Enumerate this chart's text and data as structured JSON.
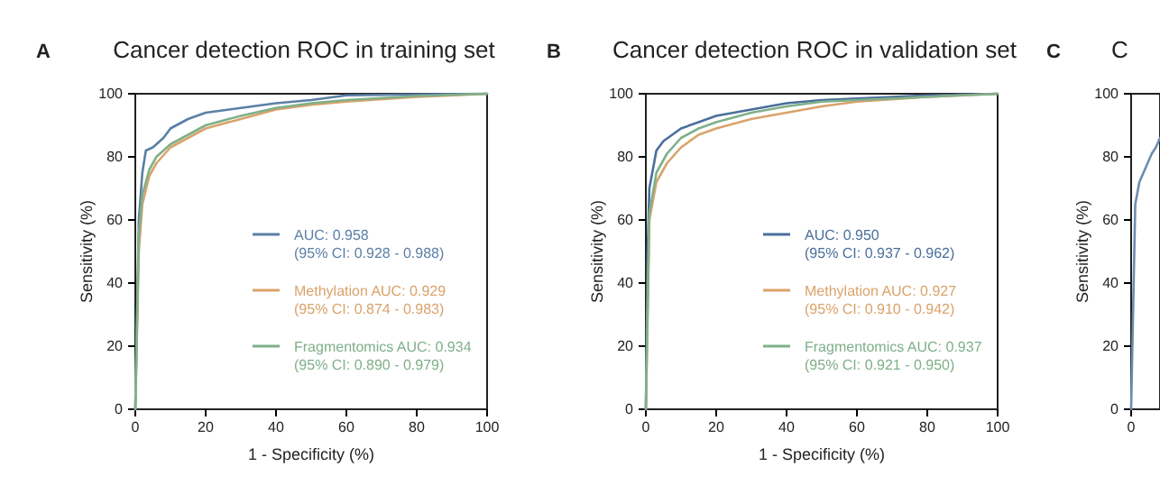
{
  "chart_data": [
    {
      "type": "line",
      "title": "Cancer detection ROC in training set",
      "xlabel": "1 - Specificity (%)",
      "ylabel": "Sensitivity (%)",
      "annotations": [
        "A"
      ],
      "xlim": [
        0,
        100
      ],
      "ylim": [
        0,
        100
      ],
      "xticks": [
        0,
        20,
        40,
        60,
        80,
        100
      ],
      "yticks": [
        0,
        20,
        40,
        60,
        80,
        100
      ],
      "legend": "right",
      "grid": false,
      "marker": "none",
      "series": [
        {
          "name": "AUC: 0.958\n(95% CI: 0.928 - 0.988)",
          "color": "#5b7fa6",
          "x": [
            0,
            0.5,
            1,
            2,
            3,
            5,
            8,
            10,
            15,
            20,
            30,
            40,
            50,
            60,
            80,
            100
          ],
          "values": [
            0,
            30,
            60,
            75,
            82,
            83,
            86,
            89,
            92,
            94,
            95.5,
            97,
            98,
            99.5,
            99.8,
            100
          ]
        },
        {
          "name": "Methylation AUC: 0.929\n(95% CI: 0.874 - 0.983)",
          "color": "#d9a36b",
          "x": [
            0,
            1,
            2,
            4,
            6,
            10,
            15,
            20,
            30,
            40,
            50,
            60,
            80,
            100
          ],
          "values": [
            0,
            50,
            65,
            74,
            78,
            83,
            86,
            89,
            92,
            95,
            96.5,
            97.5,
            99,
            100
          ]
        },
        {
          "name": "Fragmentomics AUC: 0.934\n(95% CI: 0.890 - 0.979)",
          "color": "#7fb08a",
          "x": [
            0,
            1,
            2,
            4,
            6,
            10,
            15,
            20,
            30,
            40,
            50,
            60,
            80,
            100
          ],
          "values": [
            0,
            55,
            68,
            76,
            80,
            84,
            87,
            90,
            93,
            95.5,
            97,
            98,
            99.3,
            100
          ]
        }
      ]
    },
    {
      "type": "line",
      "title": "Cancer detection ROC in validation set",
      "xlabel": "1 - Specificity (%)",
      "ylabel": "Sensitivity (%)",
      "annotations": [
        "B"
      ],
      "xlim": [
        0,
        100
      ],
      "ylim": [
        0,
        100
      ],
      "xticks": [
        0,
        20,
        40,
        60,
        80,
        100
      ],
      "yticks": [
        0,
        20,
        40,
        60,
        80,
        100
      ],
      "legend": "right",
      "grid": false,
      "marker": "none",
      "series": [
        {
          "name": "AUC: 0.950\n(95% CI: 0.937 - 0.962)",
          "color": "#4a6f9c",
          "x": [
            0,
            0.5,
            1,
            3,
            5,
            10,
            15,
            20,
            30,
            40,
            50,
            60,
            80,
            100
          ],
          "values": [
            0,
            50,
            70,
            82,
            85,
            89,
            91,
            93,
            95,
            97,
            98,
            98.5,
            99.5,
            100
          ]
        },
        {
          "name": "Methylation AUC: 0.927\n(95% CI: 0.910 - 0.942)",
          "color": "#d9a36b",
          "x": [
            0,
            1,
            3,
            6,
            10,
            15,
            20,
            30,
            40,
            50,
            60,
            80,
            100
          ],
          "values": [
            0,
            60,
            72,
            78,
            83,
            87,
            89,
            92,
            94,
            96,
            97.5,
            99,
            100
          ]
        },
        {
          "name": "Fragmentomics AUC: 0.937\n(95% CI: 0.921 - 0.950)",
          "color": "#7fb08a",
          "x": [
            0,
            1,
            3,
            6,
            10,
            15,
            20,
            30,
            40,
            50,
            60,
            80,
            100
          ],
          "values": [
            0,
            62,
            75,
            81,
            86,
            89,
            91,
            94,
            96,
            97.5,
            98,
            99,
            100
          ]
        }
      ]
    },
    {
      "type": "line",
      "title": "C",
      "ylabel": "Sensitivity (%)",
      "annotations": [
        "C"
      ],
      "categories": [
        "0",
        null,
        null,
        null,
        null,
        null,
        null,
        null
      ],
      "ylim": [
        0,
        100
      ],
      "yticks": [
        0,
        20,
        40,
        60,
        80,
        100
      ],
      "grid": false,
      "marker": "none",
      "series": [
        {
          "color": "#6d8db0",
          "values": [
            0,
            65,
            72,
            75,
            78,
            81,
            83,
            86
          ]
        }
      ]
    }
  ]
}
